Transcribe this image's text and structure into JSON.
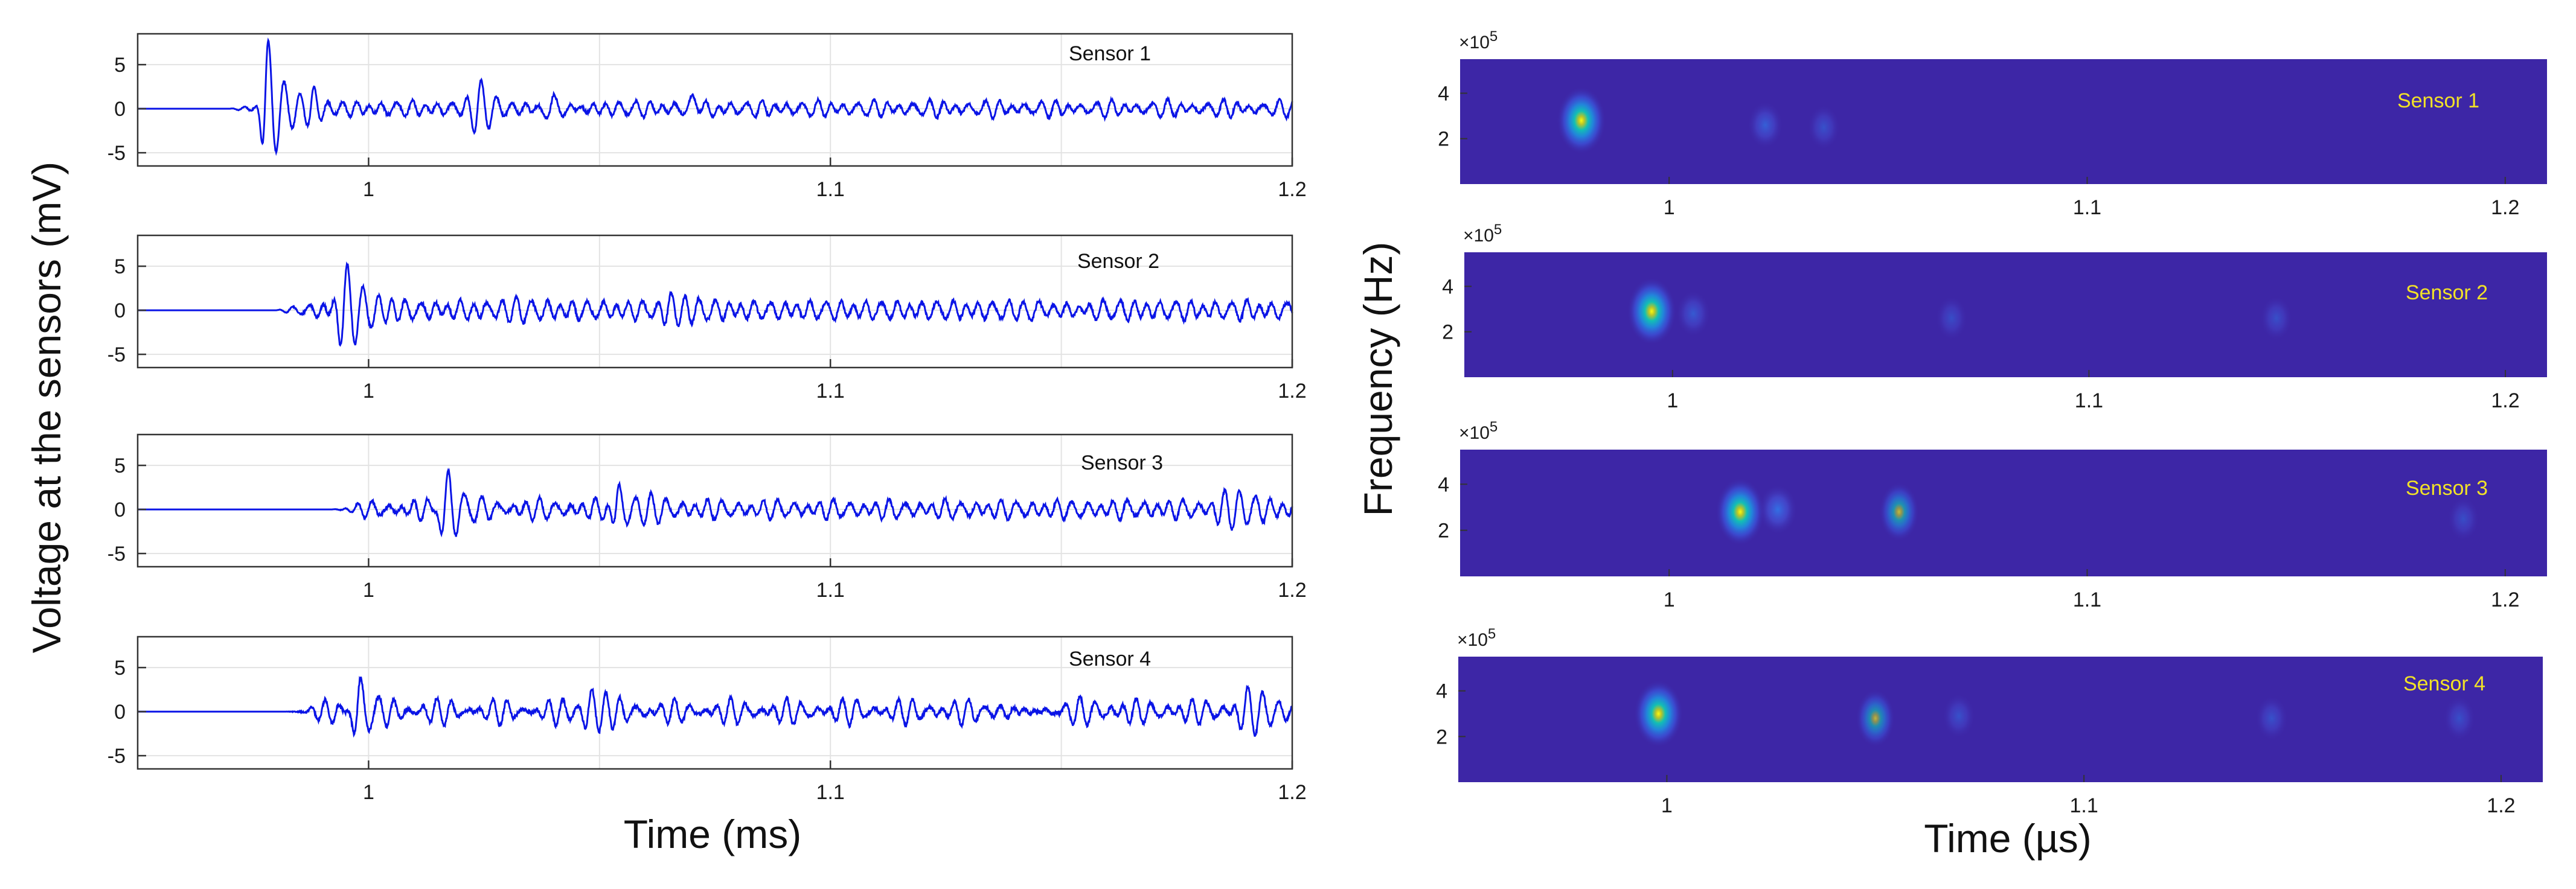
{
  "chart_data": [
    {
      "type": "line",
      "panel": "left",
      "ylabel": "Voltage at the sensors (mV)",
      "xlabel": "Time (ms)",
      "xlim": [
        0.95,
        1.2
      ],
      "ylim": [
        -6.5,
        8.5
      ],
      "xticks": [
        1,
        1.1,
        1.2
      ],
      "xtick_labels": [
        "1",
        "1.1",
        "1.2"
      ],
      "yticks": [
        5,
        0,
        -5
      ],
      "ytick_labels": [
        "5",
        "0",
        "-5"
      ],
      "grid": true,
      "line_color": "#0a14e6",
      "series": [
        {
          "name": "Sensor 1",
          "onset": 0.97,
          "noise_amp": 1.0,
          "bursts": [
            {
              "t": 0.978,
              "amp": 7.8,
              "freq": 300,
              "width": 0.004
            },
            {
              "t": 0.988,
              "amp": 2.0,
              "freq": 300,
              "width": 0.004
            },
            {
              "t": 1.024,
              "amp": 2.8,
              "freq": 280,
              "width": 0.008
            },
            {
              "t": 1.04,
              "amp": 2.5,
              "freq": 280,
              "width": 0.006
            },
            {
              "t": 1.07,
              "amp": 1.0,
              "freq": 120,
              "width": 0.004
            }
          ]
        },
        {
          "name": "Sensor 2",
          "onset": 0.98,
          "noise_amp": 1.3,
          "bursts": [
            {
              "t": 0.995,
              "amp": 4.5,
              "freq": 300,
              "width": 0.006
            },
            {
              "t": 1.025,
              "amp": 1.8,
              "freq": 300,
              "width": 0.006
            },
            {
              "t": 1.065,
              "amp": 1.8,
              "freq": 300,
              "width": 0.006
            },
            {
              "t": 1.145,
              "amp": 2.0,
              "freq": 300,
              "width": 0.008
            }
          ]
        },
        {
          "name": "Sensor 3",
          "onset": 0.992,
          "noise_amp": 1.2,
          "bursts": [
            {
              "t": 1.017,
              "amp": 4.6,
              "freq": 300,
              "width": 0.006
            },
            {
              "t": 1.054,
              "amp": 3.6,
              "freq": 300,
              "width": 0.005
            },
            {
              "t": 1.185,
              "amp": 1.5,
              "freq": 300,
              "width": 0.012
            }
          ]
        },
        {
          "name": "Sensor 4",
          "onset": 0.982,
          "noise_amp": 1.4,
          "bursts": [
            {
              "t": 0.998,
              "amp": 4.3,
              "freq": 300,
              "width": 0.005
            },
            {
              "t": 1.048,
              "amp": 2.6,
              "freq": 300,
              "width": 0.006
            },
            {
              "t": 1.14,
              "amp": 1.5,
              "freq": 300,
              "width": 0.01
            },
            {
              "t": 1.19,
              "amp": 1.6,
              "freq": 300,
              "width": 0.008
            }
          ]
        }
      ]
    },
    {
      "type": "heatmap",
      "panel": "right",
      "ylabel": "Frequency (Hz)",
      "xlabel": "Time (µs)",
      "xlim": [
        0.95,
        1.21
      ],
      "ylim": [
        0,
        550000
      ],
      "xticks": [
        1,
        1.1,
        1.2
      ],
      "xtick_labels": [
        "1",
        "1.1",
        "1.2"
      ],
      "yticks": [
        4,
        2
      ],
      "ytick_labels": [
        "4",
        "2"
      ],
      "y_exponent": "×10",
      "y_exponent_power": "5",
      "background_color": "#3d26a6",
      "series": [
        {
          "name": "Sensor 1",
          "blobs": [
            {
              "t": 0.979,
              "f": 280000,
              "intensity": 1.0
            },
            {
              "t": 1.023,
              "f": 260000,
              "intensity": 0.25
            },
            {
              "t": 1.037,
              "f": 250000,
              "intensity": 0.12
            }
          ]
        },
        {
          "name": "Sensor 2",
          "blobs": [
            {
              "t": 0.995,
              "f": 290000,
              "intensity": 1.0
            },
            {
              "t": 1.005,
              "f": 280000,
              "intensity": 0.2
            },
            {
              "t": 1.067,
              "f": 260000,
              "intensity": 0.08
            },
            {
              "t": 1.145,
              "f": 260000,
              "intensity": 0.1
            }
          ]
        },
        {
          "name": "Sensor 3",
          "blobs": [
            {
              "t": 1.017,
              "f": 280000,
              "intensity": 1.0
            },
            {
              "t": 1.026,
              "f": 290000,
              "intensity": 0.4
            },
            {
              "t": 1.055,
              "f": 280000,
              "intensity": 0.55
            },
            {
              "t": 1.19,
              "f": 250000,
              "intensity": 0.08
            }
          ]
        },
        {
          "name": "Sensor 4",
          "blobs": [
            {
              "t": 0.998,
              "f": 300000,
              "intensity": 1.0
            },
            {
              "t": 1.05,
              "f": 280000,
              "intensity": 0.5
            },
            {
              "t": 1.07,
              "f": 290000,
              "intensity": 0.12
            },
            {
              "t": 1.145,
              "f": 280000,
              "intensity": 0.12
            },
            {
              "t": 1.19,
              "f": 280000,
              "intensity": 0.1
            }
          ]
        }
      ]
    }
  ]
}
